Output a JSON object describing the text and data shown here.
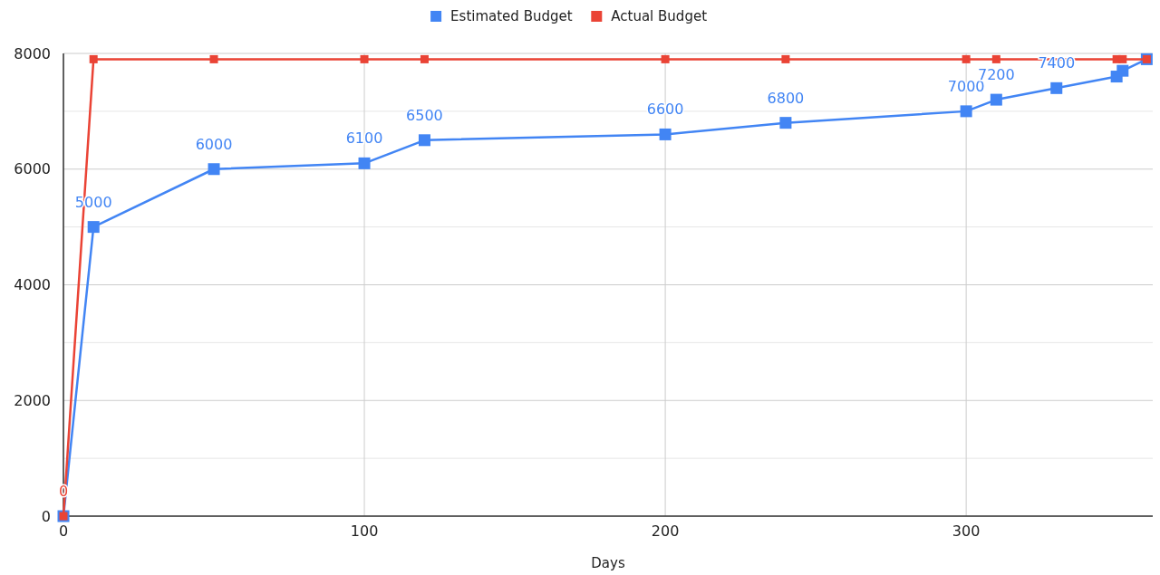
{
  "chart_data": {
    "type": "line",
    "xlabel": "Days",
    "x": [
      0,
      10,
      50,
      100,
      120,
      200,
      240,
      300,
      310,
      330,
      350,
      352,
      360
    ],
    "series": [
      {
        "name": "Estimated Budget",
        "color": "#4285f4",
        "values": [
          0,
          5000,
          6000,
          6100,
          6500,
          6600,
          6800,
          7000,
          7200,
          7400,
          7600,
          7700,
          7900
        ],
        "value_labels": [
          null,
          "5000",
          "6000",
          "6100",
          "6500",
          "6600",
          "6800",
          "7000",
          "7200",
          "7400",
          null,
          null,
          null
        ]
      },
      {
        "name": "Actual Budget",
        "color": "#ea4335",
        "x": [
          0,
          10,
          50,
          100,
          120,
          200,
          240,
          300,
          310,
          350,
          352,
          360
        ],
        "values": [
          0,
          7900,
          7900,
          7900,
          7900,
          7900,
          7900,
          7900,
          7900,
          7900,
          7900,
          7900
        ],
        "value_labels": [
          "0",
          null,
          null,
          null,
          null,
          null,
          null,
          null,
          null,
          null,
          null,
          null
        ]
      }
    ],
    "xlim": [
      0,
      362
    ],
    "xticks": [
      0,
      100,
      200,
      300
    ],
    "ylim": [
      0,
      8000
    ],
    "yticks": [
      0,
      {
        "value": 1000,
        "label": null
      },
      2000,
      {
        "value": 3000,
        "label": null
      },
      4000,
      {
        "value": 5000,
        "label": null
      },
      6000,
      {
        "value": 7000,
        "label": null
      },
      8000
    ],
    "grid": true,
    "legend": "top",
    "marker": "square"
  }
}
